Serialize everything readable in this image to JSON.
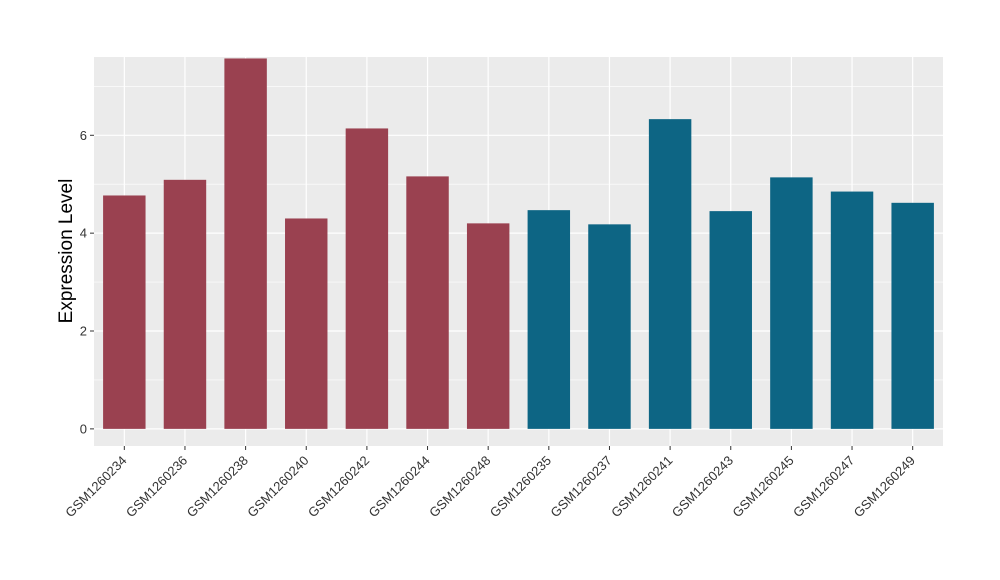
{
  "chart_data": {
    "type": "bar",
    "title": "",
    "xlabel": "",
    "ylabel": "Expression Level",
    "ylim": [
      -0.35,
      7.6
    ],
    "yticks": [
      0,
      2,
      4,
      6
    ],
    "grid": true,
    "legend": "none",
    "categories": [
      "GSM1260234",
      "GSM1260236",
      "GSM1260238",
      "GSM1260240",
      "GSM1260242",
      "GSM1260244",
      "GSM1260248",
      "GSM1260235",
      "GSM1260237",
      "GSM1260241",
      "GSM1260243",
      "GSM1260245",
      "GSM1260247",
      "GSM1260249"
    ],
    "values": [
      4.77,
      5.09,
      7.57,
      4.3,
      6.14,
      5.16,
      4.2,
      4.47,
      4.18,
      6.33,
      4.45,
      5.14,
      4.85,
      4.62
    ],
    "bar_colors": [
      "#9a4150",
      "#9a4150",
      "#9a4150",
      "#9a4150",
      "#9a4150",
      "#9a4150",
      "#9a4150",
      "#0d6584",
      "#0d6584",
      "#0d6584",
      "#0d6584",
      "#0d6584",
      "#0d6584",
      "#0d6584"
    ],
    "panel_background": "#ebebeb",
    "grid_color": "#ffffff"
  }
}
